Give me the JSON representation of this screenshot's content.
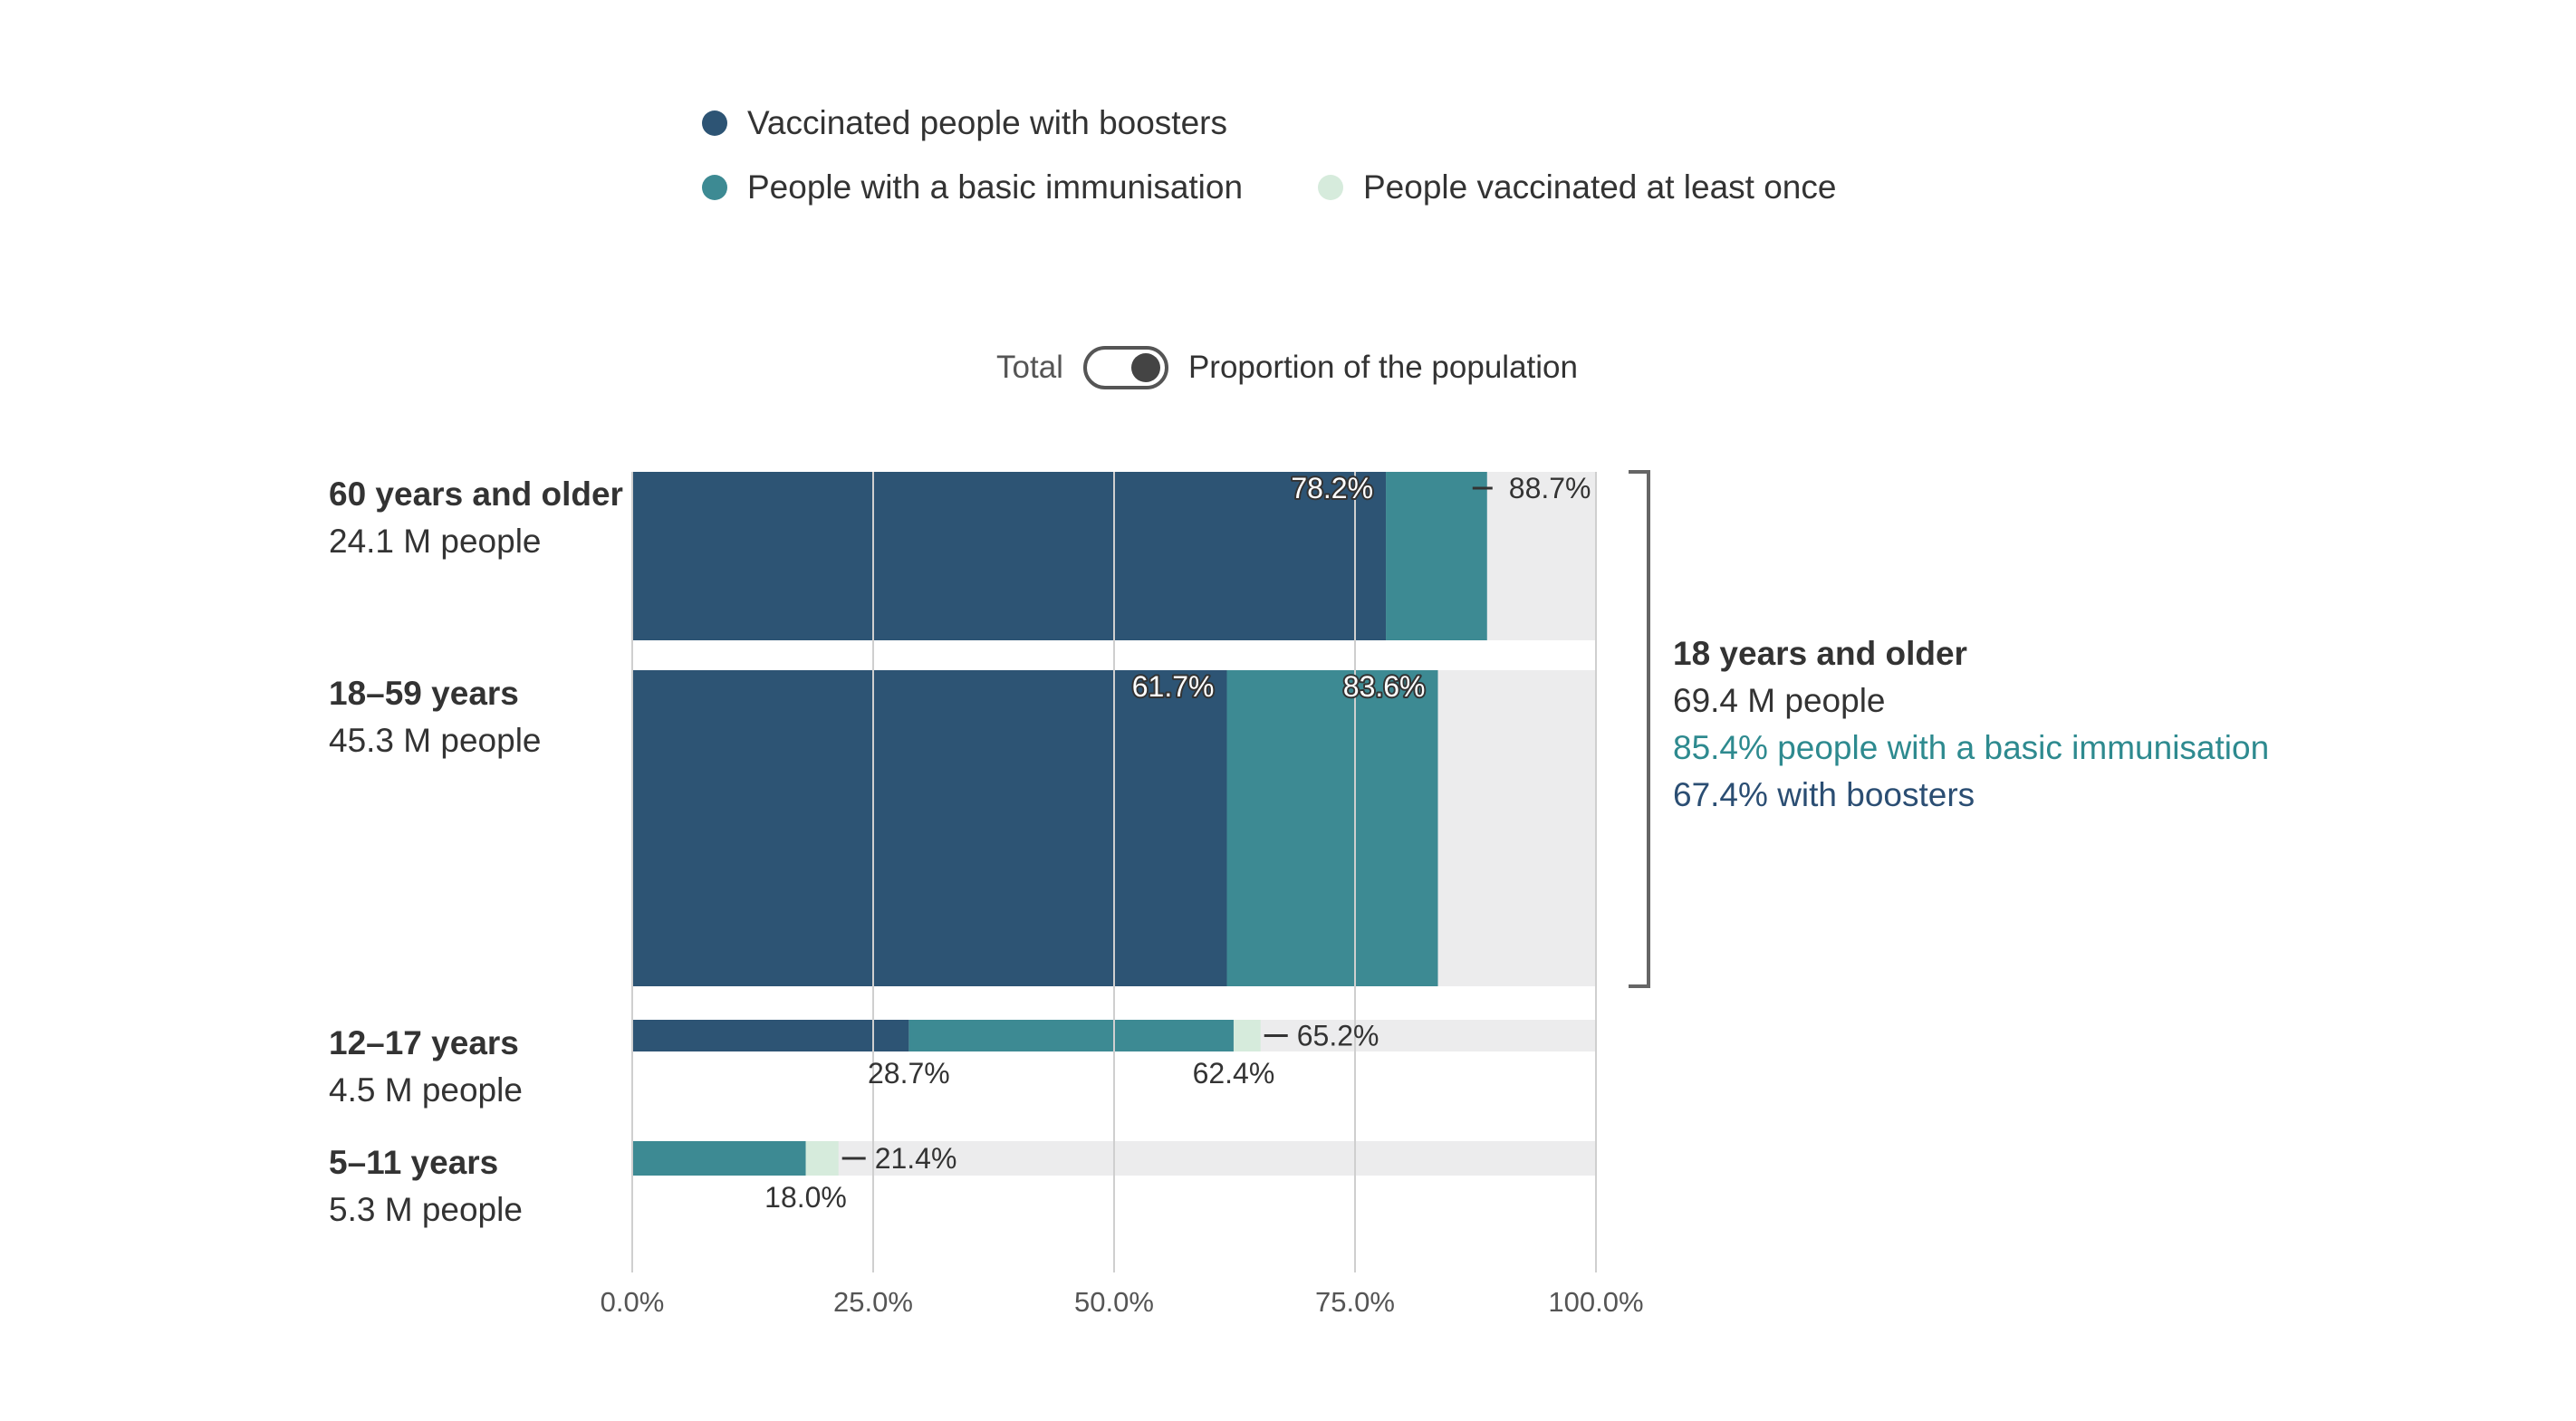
{
  "legend": {
    "booster": "Vaccinated people with boosters",
    "basic": "People with a basic immunisation",
    "once": "People vaccinated at least once"
  },
  "toggle": {
    "left_label": "Total",
    "right_label": "Proportion of the population",
    "state": "Proportion of the population"
  },
  "summary": {
    "title": "18 years and older",
    "people": "69.4 M people",
    "basic": "85.4% people with a basic immunisation",
    "booster": "67.4% with boosters"
  },
  "colors": {
    "booster": "#2d5474",
    "basic": "#3d8a93",
    "once": "#d6ebdc",
    "remainder": "#ececed",
    "grid": "#cfcfcf",
    "text": "#333333",
    "summary_basic": "#2e8a8f",
    "summary_booster": "#2b4e73"
  },
  "chart_data": {
    "type": "bar",
    "orientation": "horizontal",
    "stacked": true,
    "xlim": [
      0,
      100
    ],
    "x_ticks": [
      "0.0%",
      "25.0%",
      "50.0%",
      "75.0%",
      "100.0%"
    ],
    "grid": true,
    "legend_position": "top",
    "series_order": [
      "booster",
      "basic",
      "once"
    ],
    "categories": [
      {
        "name": "60 years and older",
        "people": "24.1 M people",
        "population_m": 24.1,
        "booster": 78.2,
        "basic": 88.7,
        "once": 88.7,
        "labels": {
          "booster": "78.2%",
          "once": "88.7%"
        }
      },
      {
        "name": "18–59 years",
        "people": "45.3 M people",
        "population_m": 45.3,
        "booster": 61.7,
        "basic": 83.6,
        "once": 83.6,
        "labels": {
          "booster": "61.7%",
          "basic": "83.6%"
        }
      },
      {
        "name": "12–17 years",
        "people": "4.5 M people",
        "population_m": 4.5,
        "booster": 28.7,
        "basic": 62.4,
        "once": 65.2,
        "labels": {
          "booster": "28.7%",
          "basic": "62.4%",
          "once": "65.2%"
        }
      },
      {
        "name": "5–11 years",
        "people": "5.3 M people",
        "population_m": 5.3,
        "booster": 0,
        "basic": 18.0,
        "once": 21.4,
        "labels": {
          "basic": "18.0%",
          "once": "21.4%"
        }
      }
    ]
  }
}
